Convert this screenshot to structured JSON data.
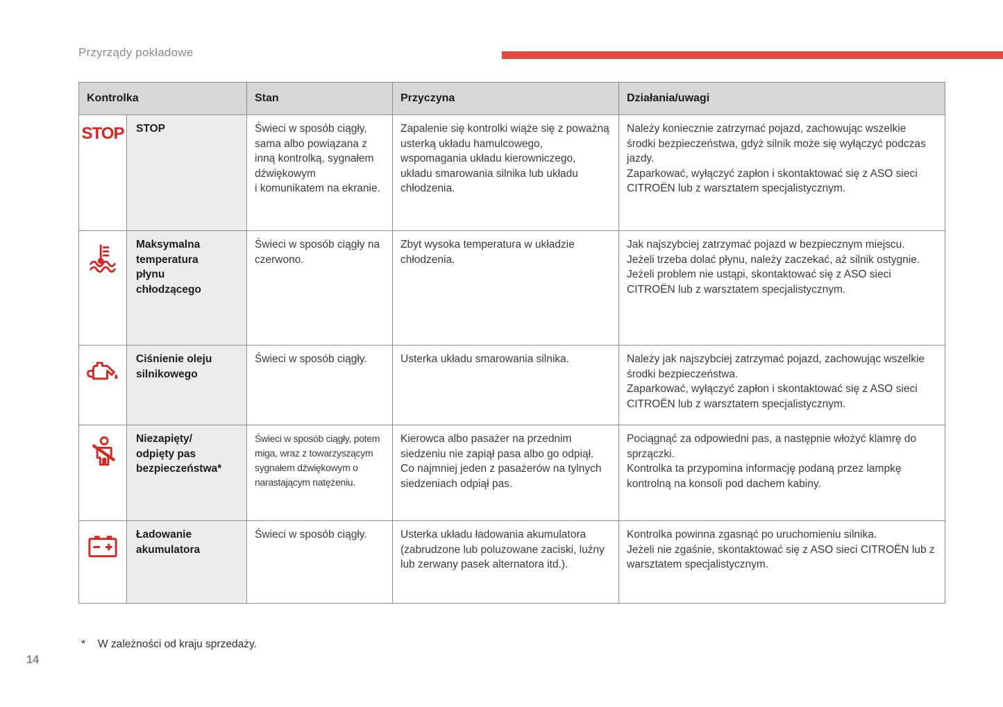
{
  "page": {
    "title": "Przyrządy pokładowe",
    "page_number": "14",
    "footnote_marker": "*",
    "footnote_text": "W zależności od kraju sprzedaży."
  },
  "colors": {
    "accent_red": "#dc241f",
    "bar_red": "#e2493c",
    "header_bg": "#d7d7d7",
    "name_cell_bg": "#ececec",
    "border_gray": "#8e8e8e",
    "title_gray": "#8a8a8a"
  },
  "table": {
    "columns": [
      "Kontrolka",
      "Stan",
      "Przyczyna",
      "Działania/uwagi"
    ],
    "rows": [
      {
        "icon": "stop-icon",
        "icon_label": "STOP",
        "name": "STOP",
        "stan": "Świeci w sposób ciągły, sama albo powiązana z inną kontrolką, sygnałem dźwiękowym\ni komunikatem na ekranie.",
        "przyczyna": "Zapalenie się kontrolki wiąże się z poważną usterką układu hamulcowego, wspomagania układu kierowniczego, układu smarowania silnika lub układu chłodzenia.",
        "dzialania": "Należy koniecznie zatrzymać pojazd, zachowując wszelkie środki bezpieczeństwa, gdyż silnik może się wyłączyć podczas jazdy.\nZaparkować, wyłączyć zapłon i skontaktować się z ASO sieci CITROËN lub z warsztatem specjalistycznym."
      },
      {
        "icon": "coolant-temperature-icon",
        "name": "Maksymalna\ntemperatura\npłynu\nchłodzącego",
        "stan": "Świeci w sposób ciągły na czerwono.",
        "przyczyna": "Zbyt wysoka temperatura w układzie chłodzenia.",
        "dzialania": "Jak najszybciej zatrzymać pojazd w bezpiecznym miejscu.\nJeżeli trzeba dolać płynu, należy zaczekać, aż silnik ostygnie.\nJeżeli problem nie ustąpi, skontaktować się z ASO sieci CITROËN lub z warsztatem specjalistycznym."
      },
      {
        "icon": "engine-oil-pressure-icon",
        "name": "Ciśnienie oleju silnikowego",
        "stan": "Świeci w sposób ciągły.",
        "przyczyna": "Usterka układu smarowania silnika.",
        "dzialania": "Należy jak najszybciej zatrzymać pojazd, zachowując wszelkie środki bezpieczeństwa.\nZaparkować, wyłączyć zapłon i skontaktować się z ASO sieci CITROËN lub z warsztatem specjalistycznym."
      },
      {
        "icon": "seatbelt-warning-icon",
        "name": "Niezapięty/\nodpięty pas\nbezpieczeństwa*",
        "stan": "Świeci w sposób ciągły, potem miga, wraz z towarzyszącym sygnałem dźwiękowym o narastającym natężeniu.",
        "przyczyna": "Kierowca albo pasażer na przednim siedzeniu nie zapiął pasa albo go odpiął.\nCo najmniej jeden z pasażerów na tylnych siedzeniach odpiął pas.",
        "dzialania": "Pociągnąć za odpowiedni pas, a następnie włożyć klamrę do sprzączki.\nKontrolka ta przypomina informację podaną przez lampkę kontrolną na konsoli pod dachem kabiny."
      },
      {
        "icon": "battery-charge-icon",
        "name": "Ładowanie\nakumulatora",
        "stan": "Świeci w sposób ciągły.",
        "przyczyna": "Usterka układu ładowania akumulatora (zabrudzone lub poluzowane zaciski, luźny lub zerwany pasek alternatora itd.).",
        "dzialania": "Kontrolka powinna zgasnąć po uruchomieniu silnika.\nJeżeli nie zgaśnie, skontaktować się z ASO sieci CITROËN lub z warsztatem specjalistycznym."
      }
    ]
  }
}
